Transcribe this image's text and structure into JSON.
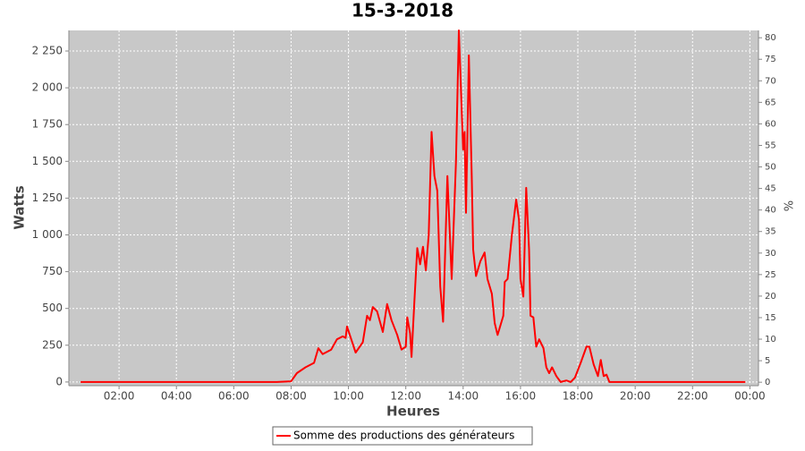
{
  "chart_data": {
    "type": "line",
    "title": "15-3-2018",
    "x_label": "Heures",
    "y_label": "Watts",
    "y2_label": "%",
    "xlim": [
      0.25,
      24.3
    ],
    "ylim": [
      -25,
      2390
    ],
    "y2lim": [
      -0.8,
      81.7
    ],
    "xticks": [
      {
        "value": 2,
        "label": "02:00"
      },
      {
        "value": 4,
        "label": "04:00"
      },
      {
        "value": 6,
        "label": "06:00"
      },
      {
        "value": 8,
        "label": "08:00"
      },
      {
        "value": 10,
        "label": "10:00"
      },
      {
        "value": 12,
        "label": "12:00"
      },
      {
        "value": 14,
        "label": "14:00"
      },
      {
        "value": 16,
        "label": "16:00"
      },
      {
        "value": 18,
        "label": "18:00"
      },
      {
        "value": 20,
        "label": "20:00"
      },
      {
        "value": 22,
        "label": "22:00"
      },
      {
        "value": 24,
        "label": "00:00"
      }
    ],
    "yticks": [
      0,
      250,
      500,
      750,
      {
        "value": 1000,
        "label": "1 000"
      },
      {
        "value": 1250,
        "label": "1 250"
      },
      {
        "value": 1500,
        "label": "1 500"
      },
      {
        "value": 1750,
        "label": "1 750"
      },
      {
        "value": 2000,
        "label": "2 000"
      },
      {
        "value": 2250,
        "label": "2 250"
      }
    ],
    "y2ticks": [
      0,
      5,
      10,
      15,
      20,
      25,
      30,
      35,
      40,
      45,
      50,
      55,
      60,
      65,
      70,
      75,
      80
    ],
    "grid": true,
    "legend": "bottom",
    "x": [
      0.66,
      7.5,
      8.0,
      8.2,
      8.5,
      8.8,
      8.95,
      9.1,
      9.4,
      9.6,
      9.8,
      9.9,
      9.95,
      10.25,
      10.5,
      10.65,
      10.75,
      10.85,
      11.0,
      11.2,
      11.35,
      11.5,
      11.7,
      11.85,
      12.0,
      12.05,
      12.15,
      12.2,
      12.3,
      12.4,
      12.5,
      12.6,
      12.7,
      12.8,
      12.9,
      13.0,
      13.1,
      13.2,
      13.3,
      13.45,
      13.6,
      13.75,
      13.85,
      14.0,
      14.05,
      14.1,
      14.2,
      14.3,
      14.35,
      14.45,
      14.6,
      14.75,
      14.85,
      15.0,
      15.1,
      15.2,
      15.4,
      15.45,
      15.55,
      15.7,
      15.85,
      15.95,
      16.0,
      16.1,
      16.2,
      16.3,
      16.35,
      16.45,
      16.55,
      16.65,
      16.8,
      16.9,
      17.0,
      17.1,
      17.25,
      17.4,
      17.6,
      17.75,
      17.9,
      18.1,
      18.3,
      18.4,
      18.55,
      18.7,
      18.8,
      18.9,
      19.0,
      19.1,
      23.84
    ],
    "series": [
      {
        "name": "Somme des productions des  générateurs",
        "color": "#ff0000",
        "values": [
          0,
          0,
          5,
          60,
          100,
          130,
          230,
          190,
          220,
          290,
          310,
          300,
          377,
          200,
          270,
          450,
          420,
          510,
          480,
          340,
          530,
          420,
          320,
          220,
          240,
          440,
          330,
          170,
          550,
          910,
          800,
          920,
          760,
          1000,
          1700,
          1400,
          1300,
          650,
          410,
          1400,
          700,
          1500,
          2390,
          1580,
          1700,
          1150,
          2220,
          1400,
          900,
          720,
          820,
          880,
          700,
          600,
          400,
          320,
          450,
          680,
          700,
          1000,
          1240,
          1100,
          700,
          580,
          1320,
          900,
          450,
          440,
          240,
          290,
          230,
          100,
          60,
          100,
          40,
          0,
          10,
          0,
          30,
          130,
          240,
          240,
          120,
          40,
          150,
          40,
          50,
          0,
          0
        ]
      }
    ]
  }
}
